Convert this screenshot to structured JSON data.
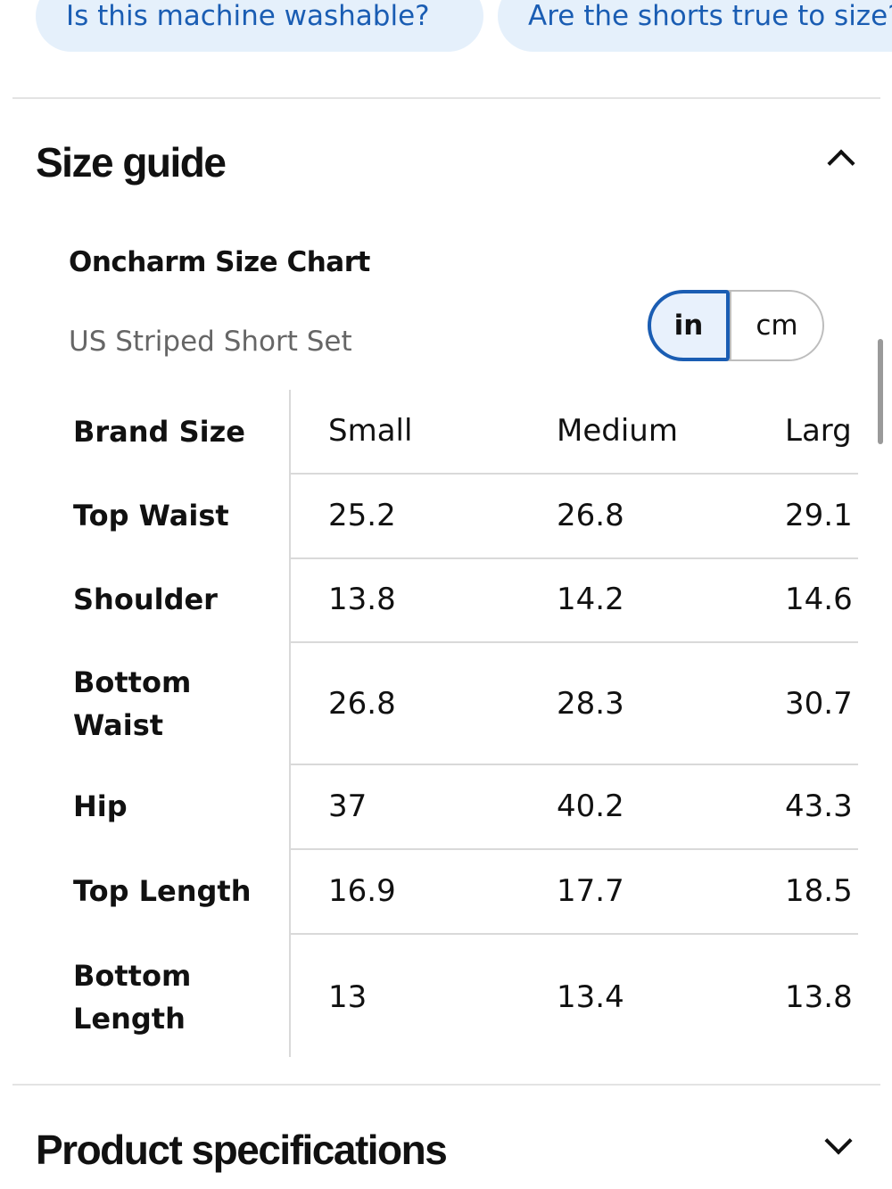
{
  "questions": {
    "chips": [
      "Is this machine washable?",
      "Are the shorts true to size?"
    ]
  },
  "size_guide": {
    "title": "Size guide",
    "expand_icon": "chevron-up-icon",
    "chart_name": "Oncharm Size Chart",
    "chart_subtitle": "US Striped Short Set",
    "units": {
      "in_label": "in",
      "cm_label": "cm",
      "selected": "in"
    },
    "table": {
      "header_label": "Brand Size",
      "columns": [
        "Small",
        "Medium",
        "Larg"
      ],
      "rows": [
        {
          "label": "Top Waist",
          "values": [
            "25.2",
            "26.8",
            "29.1"
          ]
        },
        {
          "label": "Shoulder",
          "values": [
            "13.8",
            "14.2",
            "14.6"
          ]
        },
        {
          "label": "Bottom Waist",
          "values": [
            "26.8",
            "28.3",
            "30.7"
          ]
        },
        {
          "label": "Hip",
          "values": [
            "37",
            "40.2",
            "43.3"
          ]
        },
        {
          "label": "Top Length",
          "values": [
            "16.9",
            "17.7",
            "18.5"
          ]
        },
        {
          "label": "Bottom Length",
          "values": [
            "13",
            "13.4",
            "13.8"
          ]
        }
      ]
    }
  },
  "product_specifications": {
    "title": "Product specifications",
    "expand_icon": "chevron-down-icon"
  },
  "colors": {
    "accent_blue": "#1a5db3",
    "chip_background": "#e5f0fb",
    "divider": "#e3e3e3"
  }
}
